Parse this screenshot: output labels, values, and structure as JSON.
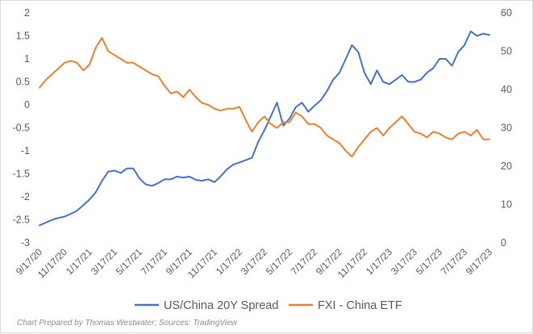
{
  "chart_data": {
    "type": "line",
    "title": "",
    "xlabel": "",
    "ylabel": "",
    "grid": false,
    "legend_position": "bottom",
    "source_note": "Chart Prepared by Thomas Westwater; Sources: TradingView",
    "x_tick_labels": [
      "9/17/20",
      "11/17/20",
      "1/17/21",
      "3/17/21",
      "5/17/21",
      "7/17/21",
      "9/17/21",
      "11/17/21",
      "1/17/22",
      "3/17/22",
      "5/17/22",
      "7/17/22",
      "9/17/22",
      "11/17/22",
      "1/17/23",
      "3/17/23",
      "5/17/23",
      "7/17/23",
      "9/17/23"
    ],
    "y_left": {
      "ticks": [
        "2",
        "1.5",
        "1",
        "0.5",
        "0",
        "-0.5",
        "-1",
        "-1.5",
        "-2",
        "-2.5",
        "-3"
      ],
      "ylim": [
        -3,
        2
      ]
    },
    "y_right": {
      "ticks": [
        "60",
        "50",
        "40",
        "30",
        "20",
        "10",
        "0"
      ],
      "ylim": [
        0,
        60
      ]
    },
    "x": [
      0,
      0.25,
      0.5,
      0.75,
      1,
      1.25,
      1.5,
      1.75,
      2,
      2.25,
      2.5,
      2.75,
      3,
      3.25,
      3.5,
      3.75,
      4,
      4.25,
      4.5,
      4.75,
      5,
      5.25,
      5.5,
      5.75,
      6,
      6.25,
      6.5,
      6.75,
      7,
      7.25,
      7.5,
      7.75,
      8,
      8.25,
      8.5,
      8.75,
      9,
      9.25,
      9.5,
      9.75,
      10,
      10.25,
      10.5,
      10.75,
      11,
      11.25,
      11.5,
      11.75,
      12,
      12.25,
      12.5,
      12.75,
      13,
      13.25,
      13.5,
      13.75,
      14,
      14.25,
      14.5,
      14.75,
      15,
      15.25,
      15.5,
      15.75,
      16,
      16.25,
      16.5,
      16.75,
      17,
      17.25,
      17.5,
      17.75,
      18
    ],
    "series": [
      {
        "name": "US/China 20Y Spread",
        "axis": "left",
        "color": "#4472c4",
        "values": [
          -2.62,
          -2.56,
          -2.5,
          -2.46,
          -2.43,
          -2.37,
          -2.3,
          -2.18,
          -2.06,
          -1.9,
          -1.65,
          -1.45,
          -1.43,
          -1.48,
          -1.38,
          -1.38,
          -1.6,
          -1.73,
          -1.76,
          -1.7,
          -1.62,
          -1.62,
          -1.56,
          -1.58,
          -1.56,
          -1.63,
          -1.65,
          -1.62,
          -1.68,
          -1.55,
          -1.4,
          -1.3,
          -1.25,
          -1.2,
          -1.15,
          -0.8,
          -0.55,
          -0.25,
          0.05,
          -0.45,
          -0.3,
          -0.05,
          0.05,
          -0.15,
          -0.02,
          0.1,
          0.3,
          0.55,
          0.7,
          1.0,
          1.3,
          1.15,
          0.7,
          0.45,
          0.75,
          0.5,
          0.45,
          0.55,
          0.65,
          0.5,
          0.5,
          0.55,
          0.7,
          0.8,
          1.0,
          1.0,
          0.85,
          1.15,
          1.3,
          1.6,
          1.5,
          1.55,
          1.52
        ]
      },
      {
        "name": "FXI - China ETF",
        "axis": "right",
        "color": "#ed7d31",
        "values": [
          40.5,
          42.5,
          44,
          45.5,
          47,
          47.5,
          47,
          45,
          46.5,
          51,
          53.5,
          50,
          49,
          48,
          47,
          47,
          46,
          45,
          44,
          43.5,
          41,
          39,
          39.5,
          38,
          40,
          38,
          36.5,
          36,
          35,
          34.5,
          35,
          35,
          35.5,
          32,
          29,
          31.5,
          33,
          31,
          30,
          31.5,
          31.5,
          34,
          33,
          31,
          31,
          30,
          28,
          27,
          26,
          24,
          22.5,
          25,
          27,
          29,
          30,
          28,
          30,
          31.5,
          33,
          31,
          29,
          28.5,
          27.5,
          29,
          28.5,
          27.5,
          27,
          28.5,
          29,
          28,
          29.5,
          27,
          27
        ]
      }
    ]
  }
}
